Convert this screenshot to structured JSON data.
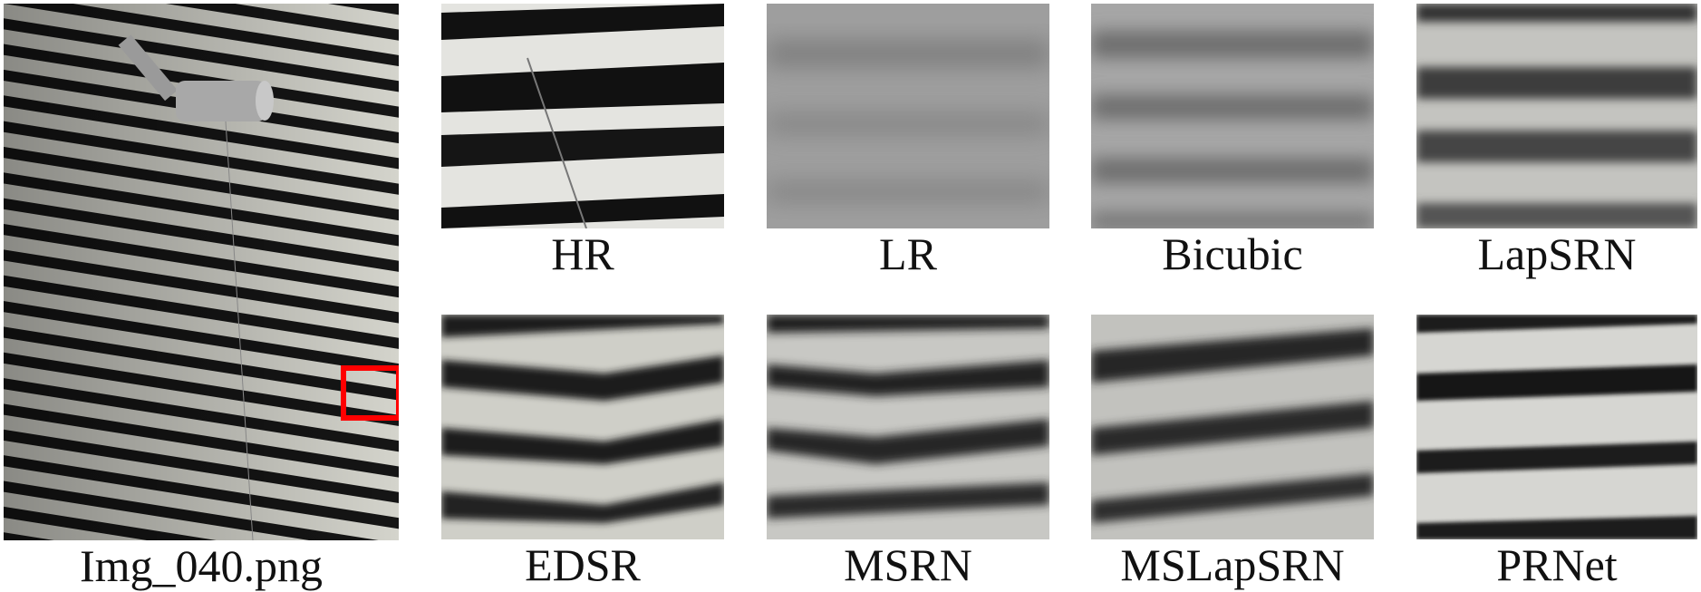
{
  "main_image": {
    "caption": "Img_040.png",
    "highlight_color": "#ff0000"
  },
  "patches": [
    {
      "id": "hr",
      "caption": "HR"
    },
    {
      "id": "lr",
      "caption": "LR"
    },
    {
      "id": "bicubic",
      "caption": "Bicubic"
    },
    {
      "id": "lapsrn",
      "caption": "LapSRN"
    },
    {
      "id": "edsr",
      "caption": "EDSR"
    },
    {
      "id": "msrn",
      "caption": "MSRN"
    },
    {
      "id": "mslapsrn",
      "caption": "MSLapSRN"
    },
    {
      "id": "prnet",
      "caption": "PRNet"
    }
  ]
}
